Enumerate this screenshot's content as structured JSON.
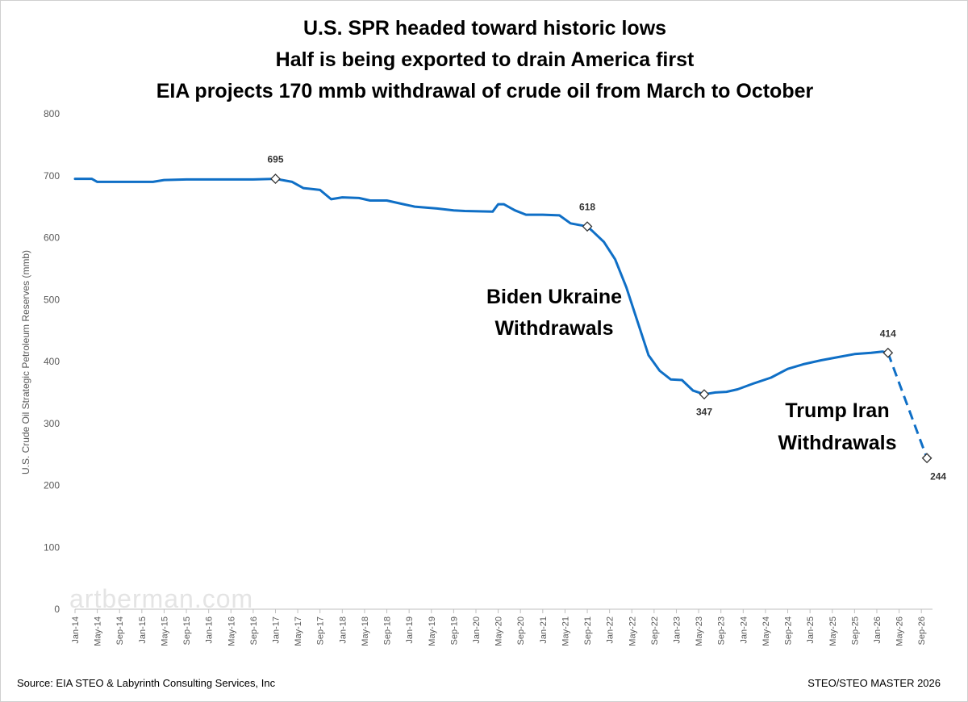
{
  "chart_data": {
    "type": "line",
    "title": [
      "U.S. SPR headed toward historic lows",
      "Half is being exported to drain America first",
      "EIA projects 170 mmb withdrawal of crude oil from March to October"
    ],
    "ylabel": "U.S. Crude Oil Strategic Petroleum Reserves (mmb)",
    "xlabel": "",
    "ylim": [
      0,
      800
    ],
    "yticks": [
      0,
      100,
      200,
      300,
      400,
      500,
      600,
      700,
      800
    ],
    "xlim": [
      "2014-01",
      "2026-11"
    ],
    "xtick_labels": [
      "Jan-14",
      "May-14",
      "Sep-14",
      "Jan-15",
      "May-15",
      "Sep-15",
      "Jan-16",
      "May-16",
      "Sep-16",
      "Jan-17",
      "May-17",
      "Sep-17",
      "Jan-18",
      "May-18",
      "Sep-18",
      "Jan-19",
      "May-19",
      "Sep-19",
      "Jan-20",
      "May-20",
      "Sep-20",
      "Jan-21",
      "May-21",
      "Sep-21",
      "Jan-22",
      "May-22",
      "Sep-22",
      "Jan-23",
      "May-23",
      "Sep-23",
      "Jan-24",
      "May-24",
      "Sep-24",
      "Jan-25",
      "May-25",
      "Sep-25",
      "Jan-26",
      "May-26",
      "Sep-26"
    ],
    "grid": false,
    "legend": "none",
    "line_color": "#0f6fc6",
    "series": [
      {
        "style": "solid",
        "x": [
          "2014-01",
          "2014-04",
          "2014-05",
          "2015-03",
          "2015-05",
          "2015-09",
          "2016-01",
          "2016-09",
          "2017-01",
          "2017-04",
          "2017-06",
          "2017-09",
          "2017-11",
          "2018-01",
          "2018-04",
          "2018-06",
          "2018-09",
          "2018-12",
          "2019-02",
          "2019-06",
          "2019-09",
          "2019-11",
          "2020-04",
          "2020-05",
          "2020-06",
          "2020-08",
          "2020-10",
          "2021-01",
          "2021-04",
          "2021-06",
          "2021-09",
          "2021-10",
          "2021-12",
          "2022-02",
          "2022-04",
          "2022-06",
          "2022-08",
          "2022-10",
          "2022-12",
          "2023-02",
          "2023-04",
          "2023-06",
          "2023-08",
          "2023-10",
          "2023-12",
          "2024-03",
          "2024-06",
          "2024-09",
          "2024-12",
          "2025-03",
          "2025-06",
          "2025-09",
          "2025-12",
          "2026-02",
          "2026-03"
        ],
        "y": [
          695,
          695,
          690,
          690,
          693,
          694,
          694,
          694,
          695,
          690,
          680,
          677,
          662,
          665,
          664,
          660,
          660,
          654,
          650,
          647,
          644,
          643,
          642,
          654,
          654,
          644,
          637,
          637,
          636,
          623,
          618,
          610,
          593,
          565,
          520,
          465,
          410,
          385,
          371,
          370,
          353,
          347,
          350,
          351,
          355,
          365,
          374,
          388,
          396,
          402,
          407,
          412,
          414,
          416,
          414
        ]
      },
      {
        "style": "dashed",
        "x": [
          "2026-03",
          "2026-10"
        ],
        "y": [
          414,
          244
        ]
      }
    ],
    "points": [
      {
        "x": "2017-01",
        "y": 695,
        "label": "695"
      },
      {
        "x": "2021-09",
        "y": 618,
        "label": "618"
      },
      {
        "x": "2023-06",
        "y": 347,
        "label": "347"
      },
      {
        "x": "2026-03",
        "y": 414,
        "label": "414"
      },
      {
        "x": "2026-10",
        "y": 244,
        "label": "244"
      }
    ],
    "annotations": [
      {
        "lines": [
          "Biden Ukraine",
          "Withdrawals"
        ]
      },
      {
        "lines": [
          "Trump Iran",
          "Withdrawals"
        ]
      }
    ]
  },
  "footer": {
    "source": "Source: EIA STEO & Labyrinth Consulting Services, Inc",
    "right": "STEO/STEO MASTER 2026"
  },
  "watermark": "artberman.com"
}
